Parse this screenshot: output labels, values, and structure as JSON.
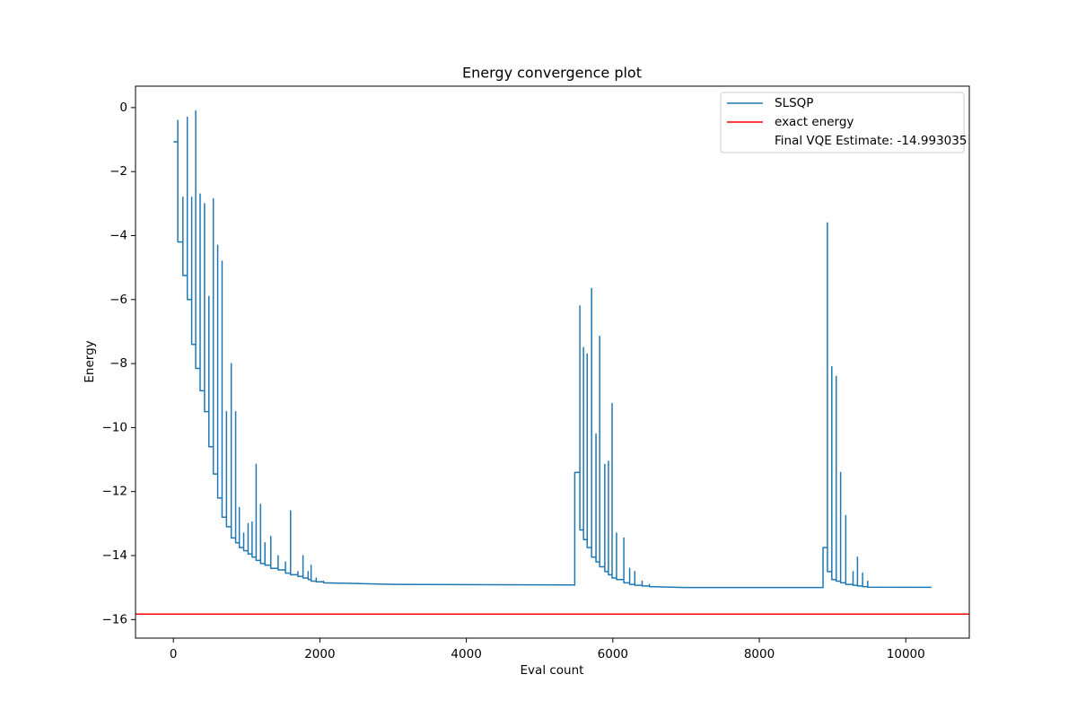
{
  "chart_data": {
    "type": "line",
    "title": "Energy convergence plot",
    "xlabel": "Eval count",
    "ylabel": "Energy",
    "xlim": [
      -517,
      10867
    ],
    "ylim": [
      -16.58,
      0.67
    ],
    "xticks": [
      0,
      2000,
      4000,
      6000,
      8000,
      10000
    ],
    "yticks": [
      {
        "value": -16,
        "label": "−16"
      },
      {
        "value": -14,
        "label": "−14"
      },
      {
        "value": -12,
        "label": "−12"
      },
      {
        "value": -10,
        "label": "−10"
      },
      {
        "value": -8,
        "label": "−8"
      },
      {
        "value": -6,
        "label": "−6"
      },
      {
        "value": -4,
        "label": "−4"
      },
      {
        "value": -2,
        "label": "−2"
      },
      0
    ],
    "legend": "upper right",
    "x": [
      0,
      60,
      60,
      60,
      130,
      130,
      130,
      190,
      190,
      190,
      250,
      250,
      250,
      305,
      305,
      305,
      365,
      365,
      365,
      425,
      425,
      425,
      485,
      485,
      485,
      545,
      545,
      545,
      605,
      605,
      605,
      665,
      665,
      665,
      725,
      725,
      725,
      790,
      790,
      790,
      850,
      850,
      850,
      900,
      900,
      900,
      960,
      960,
      960,
      1020,
      1020,
      1020,
      1075,
      1075,
      1075,
      1130,
      1130,
      1130,
      1190,
      1190,
      1190,
      1250,
      1250,
      1250,
      1330,
      1330,
      1330,
      1430,
      1430,
      1430,
      1530,
      1530,
      1530,
      1600,
      1600,
      1600,
      1700,
      1700,
      1700,
      1770,
      1770,
      1770,
      1840,
      1840,
      1840,
      1880,
      1880,
      1880,
      1950,
      1950,
      1950,
      2050,
      2050,
      2050,
      3000,
      5480,
      5480,
      5550,
      5550,
      5550,
      5600,
      5600,
      5600,
      5650,
      5650,
      5650,
      5710,
      5710,
      5710,
      5770,
      5770,
      5770,
      5820,
      5820,
      5820,
      5890,
      5890,
      5890,
      5940,
      5940,
      5940,
      5990,
      5990,
      5990,
      6050,
      6050,
      6050,
      6150,
      6150,
      6150,
      6230,
      6230,
      6230,
      6300,
      6300,
      6300,
      6400,
      6400,
      6400,
      6500,
      6500,
      6500,
      7000,
      8870,
      8870,
      8930,
      8930,
      8930,
      8990,
      8990,
      8990,
      9050,
      9050,
      9050,
      9110,
      9110,
      9110,
      9180,
      9180,
      9180,
      9280,
      9280,
      9280,
      9340,
      9340,
      9340,
      9410,
      9410,
      9410,
      9480,
      9480,
      9480,
      10350
    ],
    "series": [
      {
        "name": "SLSQP",
        "color": "#1f77b4",
        "values": [
          -1.07,
          -1.07,
          -0.4,
          -4.2,
          -4.2,
          -2.8,
          -5.25,
          -5.25,
          -0.3,
          -6.0,
          -6.0,
          -2.8,
          -7.4,
          -7.4,
          -0.1,
          -8.15,
          -8.15,
          -2.7,
          -8.85,
          -8.85,
          -3.0,
          -9.5,
          -9.5,
          -5.9,
          -10.6,
          -10.6,
          -2.85,
          -11.45,
          -11.45,
          -4.3,
          -12.2,
          -12.2,
          -4.8,
          -12.8,
          -12.8,
          -9.5,
          -13.1,
          -13.1,
          -8.0,
          -13.45,
          -13.45,
          -9.5,
          -13.6,
          -13.6,
          -12.5,
          -13.75,
          -13.75,
          -13.3,
          -13.85,
          -13.85,
          -13.0,
          -13.95,
          -13.95,
          -12.95,
          -14.05,
          -14.05,
          -11.15,
          -14.15,
          -14.15,
          -12.4,
          -14.25,
          -14.25,
          -13.6,
          -14.3,
          -14.3,
          -13.4,
          -14.4,
          -14.4,
          -14.0,
          -14.45,
          -14.45,
          -14.2,
          -14.55,
          -14.55,
          -12.6,
          -14.6,
          -14.6,
          -14.5,
          -14.65,
          -14.65,
          -14.0,
          -14.7,
          -14.7,
          -14.5,
          -14.75,
          -14.75,
          -14.3,
          -14.8,
          -14.8,
          -14.7,
          -14.82,
          -14.82,
          -14.8,
          -14.85,
          -14.9,
          -14.92,
          -11.4,
          -11.4,
          -6.2,
          -13.2,
          -13.2,
          -7.5,
          -13.5,
          -13.5,
          -7.7,
          -13.75,
          -13.75,
          -5.65,
          -14.05,
          -14.05,
          -10.2,
          -14.2,
          -14.2,
          -7.15,
          -14.35,
          -14.35,
          -11.15,
          -14.5,
          -14.5,
          -11.05,
          -14.6,
          -14.6,
          -9.25,
          -14.7,
          -14.7,
          -13.3,
          -14.75,
          -14.75,
          -13.45,
          -14.85,
          -14.85,
          -14.4,
          -14.9,
          -14.9,
          -14.5,
          -14.93,
          -14.93,
          -14.8,
          -14.95,
          -14.95,
          -14.9,
          -14.97,
          -15.0,
          -15.0,
          -13.75,
          -13.75,
          -3.6,
          -14.5,
          -14.5,
          -8.1,
          -14.75,
          -14.75,
          -8.4,
          -14.8,
          -14.8,
          -11.4,
          -14.85,
          -14.85,
          -12.75,
          -14.9,
          -14.9,
          -14.5,
          -14.93,
          -14.93,
          -14.05,
          -14.95,
          -14.95,
          -14.55,
          -14.97,
          -14.97,
          -14.8,
          -14.99,
          -14.993
        ]
      }
    ],
    "reference_lines": [
      {
        "name": "exact energy",
        "color": "#ff0000",
        "value": -15.83
      }
    ],
    "legend_notes": [
      "Final VQE Estimate: -14.993035"
    ]
  }
}
